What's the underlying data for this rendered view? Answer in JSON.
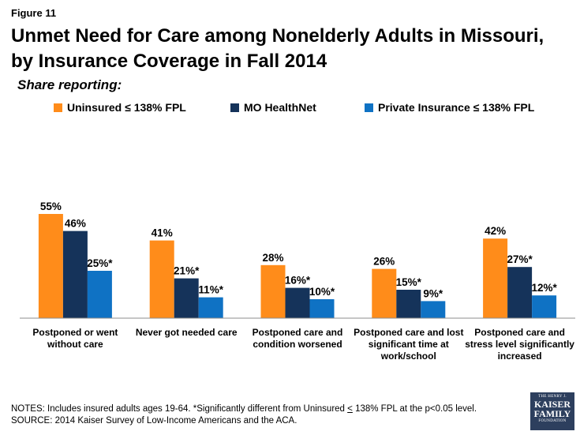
{
  "figure_label": "Figure 11",
  "title": "Unmet Need for Care among Nonelderly Adults in Missouri, by Insurance Coverage in Fall 2014",
  "subtitle": "Share reporting:",
  "colors": {
    "uninsured": "#FF8C1A",
    "mo_healthnet": "#15335A",
    "private": "#0F72C4"
  },
  "chart_data": {
    "type": "bar",
    "title": "Unmet Need for Care among Nonelderly Adults in Missouri, by Insurance Coverage in Fall 2014",
    "xlabel": "",
    "ylabel": "Share reporting:",
    "ylim": [
      0,
      60
    ],
    "legend_position": "top",
    "categories": [
      [
        "Postponed or went",
        "without care"
      ],
      [
        "Never got needed care"
      ],
      [
        "Postponed care and",
        "condition worsened"
      ],
      [
        "Postponed care and lost",
        "significant time at",
        "work/school"
      ],
      [
        "Postponed care and",
        "stress level significantly",
        "increased"
      ]
    ],
    "series": [
      {
        "name": "Uninsured ≤ 138% FPL",
        "color": "#FF8C1A",
        "values": [
          55,
          41,
          28,
          26,
          42
        ],
        "labels": [
          "55%",
          "41%",
          "28%",
          "26%",
          "42%"
        ]
      },
      {
        "name": "MO HealthNet",
        "color": "#15335A",
        "values": [
          46,
          21,
          16,
          15,
          27
        ],
        "labels": [
          "46%",
          "21%*",
          "16%*",
          "15%*",
          "27%*"
        ]
      },
      {
        "name": "Private Insurance ≤ 138% FPL",
        "color": "#0F72C4",
        "values": [
          25,
          11,
          10,
          9,
          12
        ],
        "labels": [
          "25%*",
          "11%*",
          "10%*",
          "9%*",
          "12%*"
        ]
      }
    ]
  },
  "notes": {
    "line1_prefix": "NOTES: Includes insured adults ages 19-64. *Significantly different from Uninsured ",
    "line1_under": "<",
    "line1_suffix": " 138% FPL at the p<0.05 level.",
    "line2": "SOURCE: 2014 Kaiser Survey of Low-Income Americans and the ACA."
  },
  "logo": {
    "line1": "THE HENRY J.",
    "line2": "KAISER",
    "line3": "FAMILY",
    "line4": "FOUNDATION"
  }
}
